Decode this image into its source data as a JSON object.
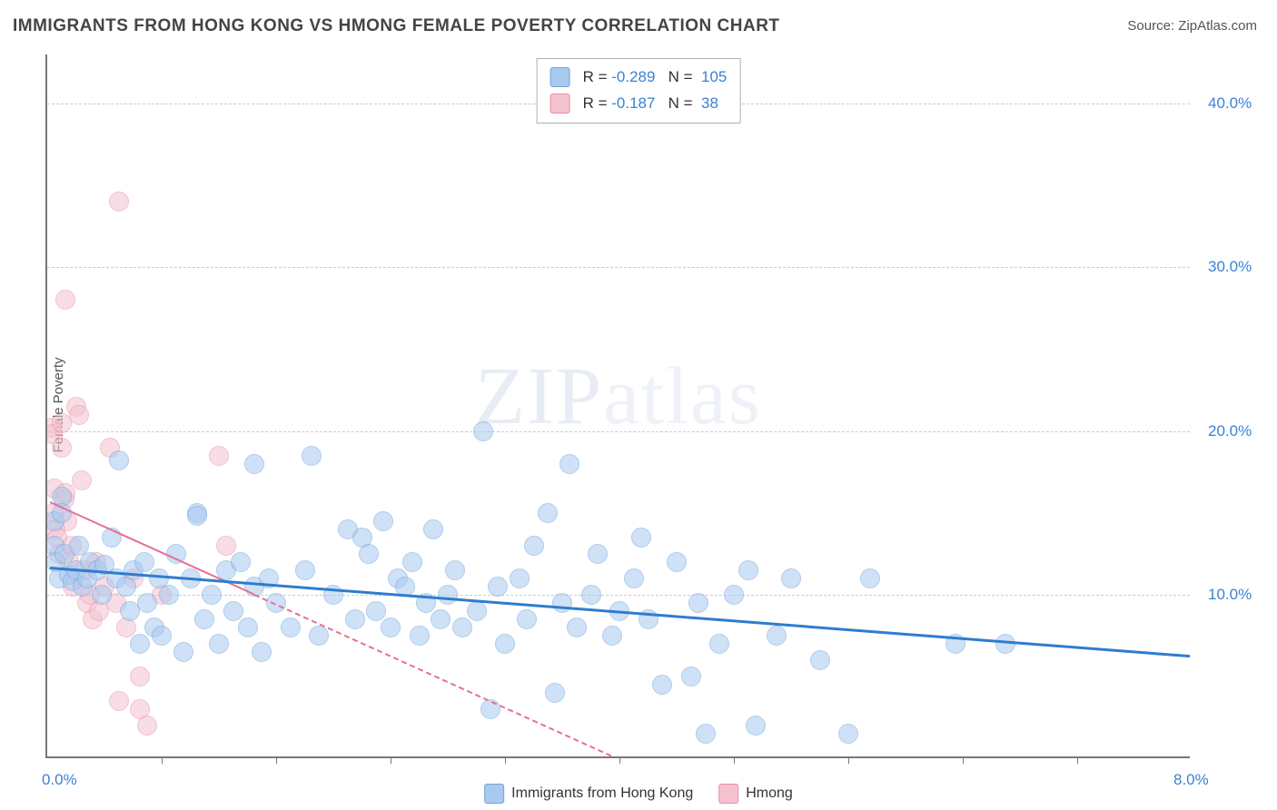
{
  "title": "IMMIGRANTS FROM HONG KONG VS HMONG FEMALE POVERTY CORRELATION CHART",
  "source_prefix": "Source: ",
  "source_name": "ZipAtlas.com",
  "ylabel": "Female Poverty",
  "watermark_a": "ZIP",
  "watermark_b": "atlas",
  "chart": {
    "type": "scatter",
    "xlim": [
      0.0,
      8.0
    ],
    "ylim": [
      0.0,
      43.0
    ],
    "x_axis_label_left": "0.0%",
    "x_axis_label_right": "8.0%",
    "yticks": [
      10.0,
      20.0,
      30.0,
      40.0
    ],
    "ytick_labels": [
      "10.0%",
      "20.0%",
      "30.0%",
      "40.0%"
    ],
    "xticks_minor": [
      0.8,
      1.6,
      2.4,
      3.2,
      4.0,
      4.8,
      5.6,
      6.4,
      7.2
    ],
    "grid_color": "#cccccc",
    "axis_color": "#777777",
    "background_color": "#ffffff",
    "tick_label_color": "#3b82d6",
    "tick_fontsize": 17,
    "title_color": "#444444",
    "title_fontsize": 19,
    "point_radius": 11,
    "point_opacity": 0.55,
    "series": [
      {
        "name": "Immigrants from Hong Kong",
        "color_fill": "#a9c9ef",
        "color_stroke": "#6fa3dd",
        "trend_color": "#2f7cd0",
        "trend_width": 3,
        "trend_dash": "solid",
        "R": "-0.289",
        "N": "105",
        "trend": {
          "x1": 0.02,
          "y1": 11.7,
          "x2": 8.0,
          "y2": 6.3
        },
        "points": [
          [
            0.05,
            14.5
          ],
          [
            0.05,
            13.0
          ],
          [
            0.06,
            12.0
          ],
          [
            0.08,
            11.0
          ],
          [
            0.1,
            16.0
          ],
          [
            0.1,
            15.0
          ],
          [
            0.12,
            12.5
          ],
          [
            0.15,
            11.2
          ],
          [
            0.18,
            10.8
          ],
          [
            0.2,
            11.5
          ],
          [
            0.22,
            13.0
          ],
          [
            0.25,
            10.5
          ],
          [
            0.28,
            11.0
          ],
          [
            0.3,
            12.0
          ],
          [
            0.35,
            11.5
          ],
          [
            0.38,
            10.0
          ],
          [
            0.4,
            11.8
          ],
          [
            0.45,
            13.5
          ],
          [
            0.48,
            11.0
          ],
          [
            0.5,
            18.2
          ],
          [
            0.55,
            10.5
          ],
          [
            0.58,
            9.0
          ],
          [
            0.6,
            11.5
          ],
          [
            0.65,
            7.0
          ],
          [
            0.68,
            12.0
          ],
          [
            0.7,
            9.5
          ],
          [
            0.75,
            8.0
          ],
          [
            0.78,
            11.0
          ],
          [
            0.8,
            7.5
          ],
          [
            0.85,
            10.0
          ],
          [
            0.9,
            12.5
          ],
          [
            0.95,
            6.5
          ],
          [
            1.0,
            11.0
          ],
          [
            1.05,
            15.0
          ],
          [
            1.05,
            14.8
          ],
          [
            1.1,
            8.5
          ],
          [
            1.15,
            10.0
          ],
          [
            1.2,
            7.0
          ],
          [
            1.25,
            11.5
          ],
          [
            1.3,
            9.0
          ],
          [
            1.35,
            12.0
          ],
          [
            1.4,
            8.0
          ],
          [
            1.45,
            10.5
          ],
          [
            1.45,
            18.0
          ],
          [
            1.5,
            6.5
          ],
          [
            1.55,
            11.0
          ],
          [
            1.6,
            9.5
          ],
          [
            1.7,
            8.0
          ],
          [
            1.8,
            11.5
          ],
          [
            1.85,
            18.5
          ],
          [
            1.9,
            7.5
          ],
          [
            2.0,
            10.0
          ],
          [
            2.1,
            14.0
          ],
          [
            2.15,
            8.5
          ],
          [
            2.2,
            13.5
          ],
          [
            2.25,
            12.5
          ],
          [
            2.3,
            9.0
          ],
          [
            2.35,
            14.5
          ],
          [
            2.4,
            8.0
          ],
          [
            2.45,
            11.0
          ],
          [
            2.5,
            10.5
          ],
          [
            2.55,
            12.0
          ],
          [
            2.6,
            7.5
          ],
          [
            2.65,
            9.5
          ],
          [
            2.7,
            14.0
          ],
          [
            2.75,
            8.5
          ],
          [
            2.8,
            10.0
          ],
          [
            2.85,
            11.5
          ],
          [
            2.9,
            8.0
          ],
          [
            3.0,
            9.0
          ],
          [
            3.05,
            20.0
          ],
          [
            3.1,
            3.0
          ],
          [
            3.15,
            10.5
          ],
          [
            3.2,
            7.0
          ],
          [
            3.3,
            11.0
          ],
          [
            3.35,
            8.5
          ],
          [
            3.4,
            13.0
          ],
          [
            3.5,
            15.0
          ],
          [
            3.55,
            4.0
          ],
          [
            3.6,
            9.5
          ],
          [
            3.65,
            18.0
          ],
          [
            3.7,
            8.0
          ],
          [
            3.8,
            10.0
          ],
          [
            3.85,
            12.5
          ],
          [
            3.95,
            7.5
          ],
          [
            4.0,
            9.0
          ],
          [
            4.1,
            11.0
          ],
          [
            4.15,
            13.5
          ],
          [
            4.2,
            8.5
          ],
          [
            4.3,
            4.5
          ],
          [
            4.4,
            12.0
          ],
          [
            4.5,
            5.0
          ],
          [
            4.55,
            9.5
          ],
          [
            4.6,
            1.5
          ],
          [
            4.7,
            7.0
          ],
          [
            4.8,
            10.0
          ],
          [
            4.9,
            11.5
          ],
          [
            4.95,
            2.0
          ],
          [
            5.1,
            7.5
          ],
          [
            5.2,
            11.0
          ],
          [
            5.4,
            6.0
          ],
          [
            5.6,
            1.5
          ],
          [
            5.75,
            11.0
          ],
          [
            6.35,
            7.0
          ],
          [
            6.7,
            7.0
          ]
        ]
      },
      {
        "name": "Hmong",
        "color_fill": "#f4c2cf",
        "color_stroke": "#e88fa8",
        "trend_color": "#e76f92",
        "trend_width": 2.5,
        "trend_dash_solid_until_x": 1.45,
        "trend_dash": "dashed",
        "R": "-0.187",
        "N": "38",
        "trend": {
          "x1": 0.02,
          "y1": 15.7,
          "x2": 4.0,
          "y2": 0.0
        },
        "points": [
          [
            0.03,
            20.2
          ],
          [
            0.04,
            19.8
          ],
          [
            0.05,
            16.5
          ],
          [
            0.05,
            15.0
          ],
          [
            0.06,
            14.0
          ],
          [
            0.07,
            13.5
          ],
          [
            0.08,
            12.5
          ],
          [
            0.1,
            19.0
          ],
          [
            0.1,
            20.5
          ],
          [
            0.12,
            15.8
          ],
          [
            0.13,
            16.2
          ],
          [
            0.14,
            14.5
          ],
          [
            0.15,
            12.0
          ],
          [
            0.17,
            13.0
          ],
          [
            0.18,
            10.5
          ],
          [
            0.2,
            21.5
          ],
          [
            0.22,
            21.0
          ],
          [
            0.24,
            17.0
          ],
          [
            0.26,
            11.5
          ],
          [
            0.28,
            9.5
          ],
          [
            0.3,
            10.0
          ],
          [
            0.32,
            8.5
          ],
          [
            0.34,
            12.0
          ],
          [
            0.36,
            9.0
          ],
          [
            0.4,
            10.5
          ],
          [
            0.44,
            19.0
          ],
          [
            0.48,
            9.5
          ],
          [
            0.5,
            3.5
          ],
          [
            0.5,
            34.0
          ],
          [
            0.55,
            8.0
          ],
          [
            0.6,
            11.0
          ],
          [
            0.65,
            5.0
          ],
          [
            0.65,
            3.0
          ],
          [
            0.7,
            2.0
          ],
          [
            0.13,
            28.0
          ],
          [
            0.8,
            10.0
          ],
          [
            1.2,
            18.5
          ],
          [
            1.25,
            13.0
          ]
        ]
      }
    ]
  },
  "legend_bottom": [
    {
      "label": "Immigrants from Hong Kong",
      "fill": "#a9c9ef",
      "stroke": "#6fa3dd"
    },
    {
      "label": "Hmong",
      "fill": "#f4c2cf",
      "stroke": "#e88fa8"
    }
  ]
}
